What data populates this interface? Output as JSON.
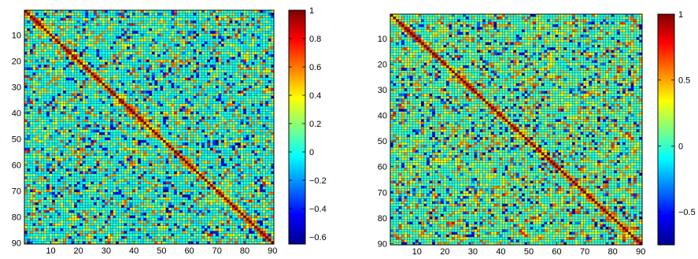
{
  "chart_data": [
    {
      "type": "heatmap",
      "title": "",
      "xlabel": "",
      "ylabel": "",
      "size": 90,
      "xlim": [
        1,
        90
      ],
      "ylim": [
        1,
        90
      ],
      "x_ticks": [
        10,
        20,
        30,
        40,
        50,
        60,
        70,
        80,
        90
      ],
      "y_ticks": [
        10,
        20,
        30,
        40,
        50,
        60,
        70,
        80,
        90
      ],
      "diagonal_value": 1,
      "colorbar": {
        "range": [
          -0.65,
          1
        ],
        "ticks": [
          1,
          0.8,
          0.6,
          0.4,
          0.2,
          0,
          -0.2,
          -0.4,
          -0.6
        ],
        "tick_labels": [
          "1",
          "0.8",
          "0.6",
          "0.4",
          "0.2",
          "0",
          "−0.2",
          "−0.4",
          "−0.6"
        ]
      }
    },
    {
      "type": "heatmap",
      "title": "",
      "xlabel": "",
      "ylabel": "",
      "size": 90,
      "xlim": [
        1,
        90
      ],
      "ylim": [
        1,
        90
      ],
      "x_ticks": [
        10,
        20,
        30,
        40,
        50,
        60,
        70,
        80,
        90
      ],
      "y_ticks": [
        10,
        20,
        30,
        40,
        50,
        60,
        70,
        80,
        90
      ],
      "diagonal_value": 1,
      "colorbar": {
        "range": [
          -0.75,
          1
        ],
        "ticks": [
          1,
          0.5,
          0,
          -0.5
        ],
        "tick_labels": [
          "1",
          "0.5",
          "0",
          "−0.5"
        ]
      }
    }
  ]
}
